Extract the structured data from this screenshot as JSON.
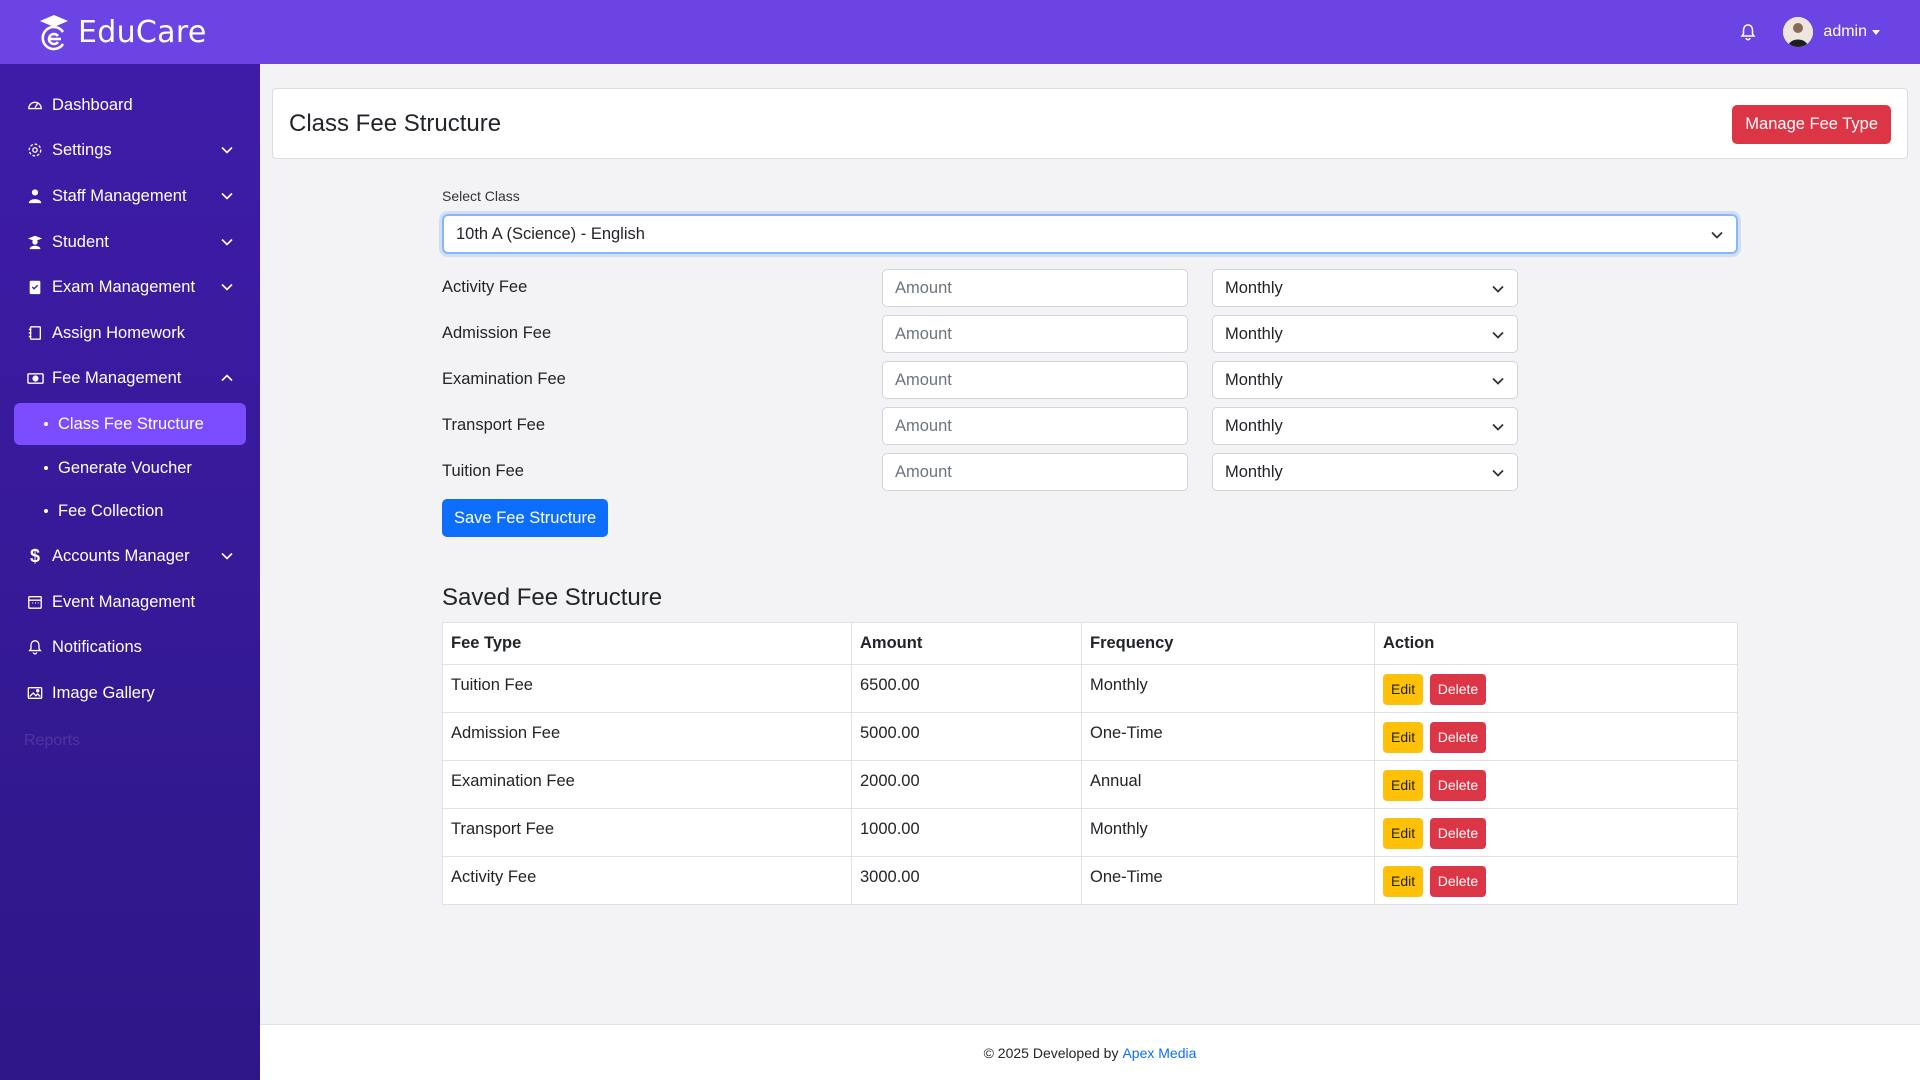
{
  "app": {
    "name": "EduCare"
  },
  "topbar": {
    "user_name": "admin"
  },
  "sidebar": {
    "items": [
      {
        "label": "Dashboard",
        "icon": "gauge-icon"
      },
      {
        "label": "Settings",
        "icon": "gear-icon"
      },
      {
        "label": "Staff Management",
        "icon": "person-icon"
      },
      {
        "label": "Student",
        "icon": "student-icon"
      },
      {
        "label": "Exam Management",
        "icon": "clipboard-icon"
      },
      {
        "label": "Assign Homework",
        "icon": "journal-icon"
      },
      {
        "label": "Fee Management",
        "icon": "cash-icon"
      },
      {
        "label": "Accounts Manager",
        "icon": "dollar-icon"
      },
      {
        "label": "Event Management",
        "icon": "calendar-icon"
      },
      {
        "label": "Notifications",
        "icon": "bell-icon"
      },
      {
        "label": "Image Gallery",
        "icon": "image-icon"
      }
    ],
    "sub_items": [
      {
        "label": "Class Fee Structure"
      },
      {
        "label": "Generate Voucher"
      },
      {
        "label": "Fee Collection"
      }
    ],
    "faded_label": "Reports"
  },
  "header": {
    "title": "Class Fee Structure",
    "manage_button": "Manage Fee Type"
  },
  "form": {
    "select_label": "Select Class",
    "selected_class": "10th A (Science) - English",
    "amount_placeholder": "Amount",
    "rows": [
      {
        "fee": "Activity Fee",
        "frequency": "Monthly"
      },
      {
        "fee": "Admission Fee",
        "frequency": "Monthly"
      },
      {
        "fee": "Examination Fee",
        "frequency": "Monthly"
      },
      {
        "fee": "Transport Fee",
        "frequency": "Monthly"
      },
      {
        "fee": "Tuition Fee",
        "frequency": "Monthly"
      }
    ],
    "save_button": "Save Fee Structure"
  },
  "saved": {
    "title": "Saved Fee Structure",
    "columns": [
      "Fee Type",
      "Amount",
      "Frequency",
      "Action"
    ],
    "rows": [
      {
        "fee": "Tuition Fee",
        "amount": "6500.00",
        "frequency": "Monthly"
      },
      {
        "fee": "Admission Fee",
        "amount": "5000.00",
        "frequency": "One-Time"
      },
      {
        "fee": "Examination Fee",
        "amount": "2000.00",
        "frequency": "Annual"
      },
      {
        "fee": "Transport Fee",
        "amount": "1000.00",
        "frequency": "Monthly"
      },
      {
        "fee": "Activity Fee",
        "amount": "3000.00",
        "frequency": "One-Time"
      }
    ],
    "edit_label": "Edit",
    "delete_label": "Delete"
  },
  "footer": {
    "text": "© 2025 Developed by",
    "link": "Apex Media"
  },
  "colors": {
    "topbar": "#6c44e4",
    "sidebar": "#3f1ca8",
    "active": "#7c4dff",
    "danger": "#dc3545",
    "primary": "#0d6efd",
    "warning": "#ffc107"
  }
}
